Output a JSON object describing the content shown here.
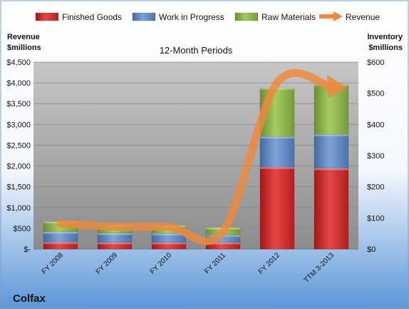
{
  "chart_data": {
    "type": "bar",
    "stacked": true,
    "title": "12-Month Periods",
    "company": "Colfax",
    "categories": [
      "FY 2008",
      "FY 2009",
      "FY 2010",
      "FY 2011",
      "FY 2012",
      "TTM 3-2013"
    ],
    "series": [
      {
        "name": "Finished Goods",
        "axis": "right",
        "color": "#d42a2a",
        "values": [
          22,
          21,
          21,
          21,
          263,
          259
        ]
      },
      {
        "name": "Work in Progress",
        "axis": "right",
        "color": "#5f88c6",
        "values": [
          33,
          30,
          29,
          24,
          98,
          109
        ]
      },
      {
        "name": "Raw Materials",
        "axis": "right",
        "color": "#8eb84a",
        "values": [
          33,
          26,
          26,
          24,
          156,
          161
        ]
      }
    ],
    "line_series": {
      "name": "Revenue",
      "axis": "left",
      "color": "#f0883a",
      "values": [
        615,
        540,
        535,
        420,
        4000,
        3900
      ]
    },
    "y_left": {
      "label_line1": "Revenue",
      "label_line2": "$millions",
      "min": 0,
      "max": 4500,
      "step": 500,
      "ticks": [
        "$-",
        "$500",
        "$1,000",
        "$1,500",
        "$2,000",
        "$2,500",
        "$3,000",
        "$3,500",
        "$4,000",
        "$4,500"
      ]
    },
    "y_right": {
      "label_line1": "Inventory",
      "label_line2": "$millions",
      "min": 0,
      "max": 600,
      "step": 100,
      "ticks": [
        "$0",
        "$100",
        "$200",
        "$300",
        "$400",
        "$500",
        "$600"
      ]
    },
    "grid": true,
    "legend_position": "top",
    "colors": {
      "plot_top": "#c4c4c4",
      "plot_bottom": "#8f8f8f",
      "bg_top": "#ffffff",
      "bg_bottom": "#5b96d8",
      "grid": "#8a8a8a"
    }
  }
}
